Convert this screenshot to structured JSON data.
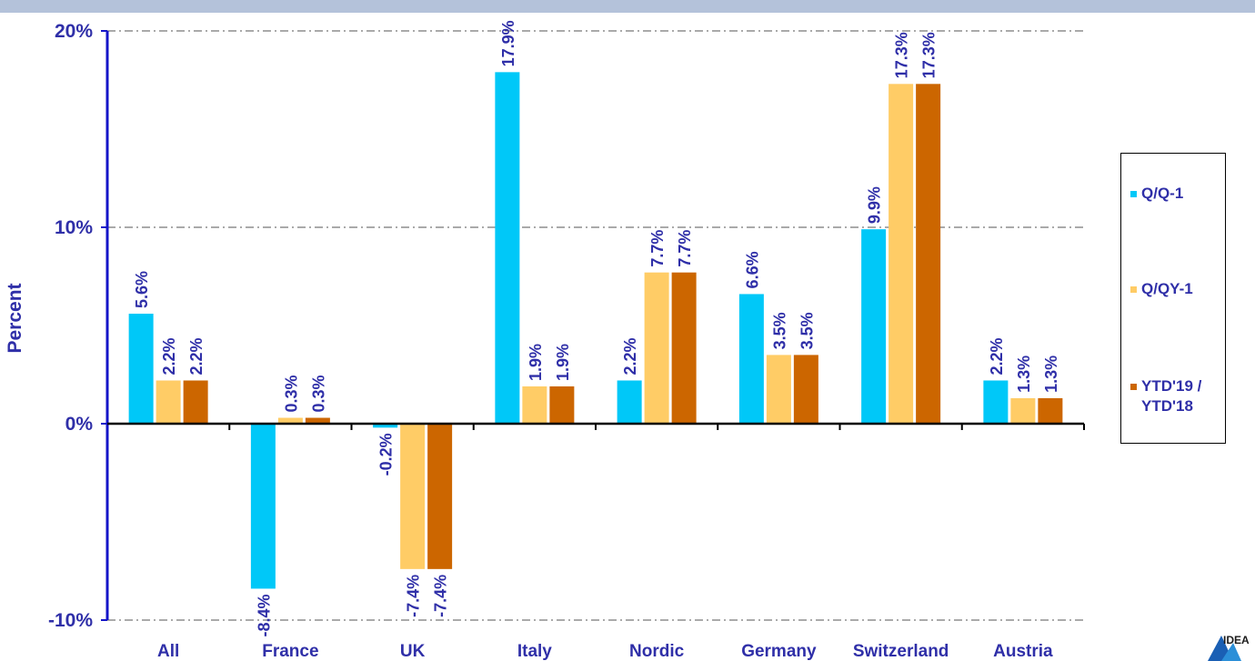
{
  "colors": {
    "top_bar": "#b4c2da",
    "axis": "#1414c8",
    "text": "#2f2fa8",
    "grid": "#555555",
    "zero_line": "#000000",
    "series": [
      "#00c8f8",
      "#ffcc66",
      "#cc6600"
    ]
  },
  "logo": {
    "text": "IDEA",
    "icon": "triangle-logo-icon"
  },
  "chart_data": {
    "type": "bar",
    "title": "",
    "xlabel": "",
    "ylabel": "Percent",
    "ylim": [
      -10,
      20
    ],
    "yticks": [
      {
        "value": -10,
        "label": "-10%"
      },
      {
        "value": 0,
        "label": "0%"
      },
      {
        "value": 10,
        "label": "10%"
      },
      {
        "value": 20,
        "label": "20%"
      }
    ],
    "grid": true,
    "legend_position": "right",
    "categories": [
      "All",
      "France",
      "UK",
      "Italy",
      "Nordic",
      "Germany",
      "Switzerland",
      "Austria"
    ],
    "series": [
      {
        "name": "Q/Q-1",
        "values": [
          5.6,
          -8.4,
          -0.2,
          17.9,
          2.2,
          6.6,
          9.9,
          2.2
        ],
        "labels": [
          "5.6%",
          "-8.4%",
          "-0.2%",
          "17.9%",
          "2.2%",
          "6.6%",
          "9.9%",
          "2.2%"
        ]
      },
      {
        "name": "Q/QY-1",
        "values": [
          2.2,
          0.3,
          -7.4,
          1.9,
          7.7,
          3.5,
          17.3,
          1.3
        ],
        "labels": [
          "2.2%",
          "0.3%",
          "-7.4%",
          "1.9%",
          "7.7%",
          "3.5%",
          "17.3%",
          "1.3%"
        ]
      },
      {
        "name": "YTD'19 /\nYTD'18",
        "values": [
          2.2,
          0.3,
          -7.4,
          1.9,
          7.7,
          3.5,
          17.3,
          1.3
        ],
        "labels": [
          "2.2%",
          "0.3%",
          "-7.4%",
          "1.9%",
          "7.7%",
          "3.5%",
          "17.3%",
          "1.3%"
        ]
      }
    ]
  }
}
